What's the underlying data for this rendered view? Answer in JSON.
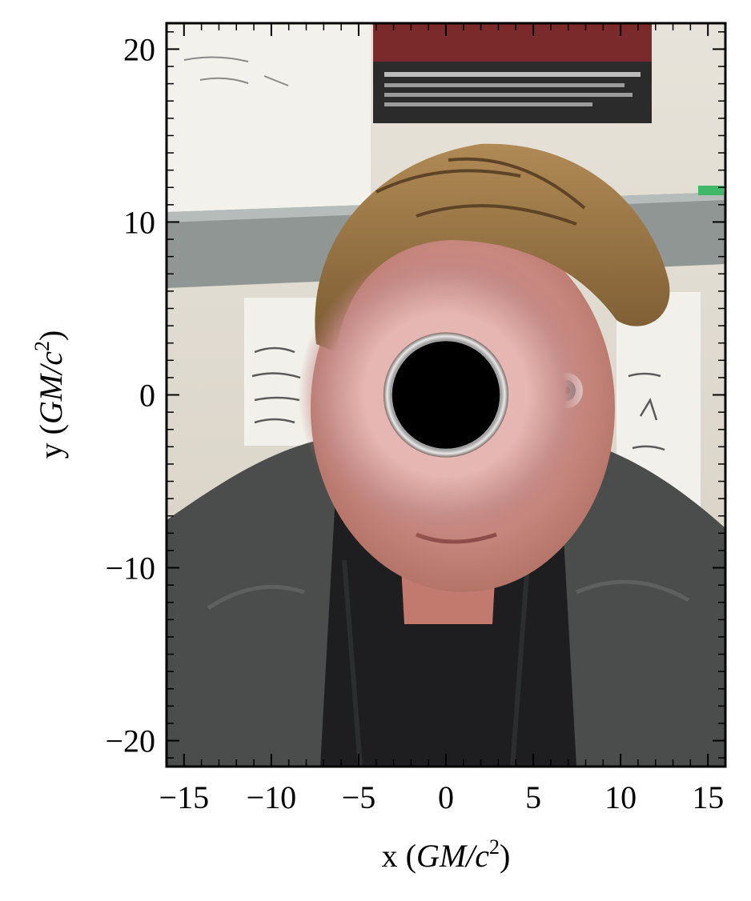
{
  "chart_data": {
    "type": "image",
    "xlabel": "x (GM/c²)",
    "ylabel": "y (GM/c²)",
    "xlabel_parts": {
      "prefix": "x (",
      "unit_main": "GM/c",
      "unit_sup": "2",
      "suffix": ")"
    },
    "ylabel_parts": {
      "prefix": "y (",
      "unit_main": "GM/c",
      "unit_sup": "2",
      "suffix": ")"
    },
    "xlim": [
      -16,
      16
    ],
    "ylim": [
      -21.5,
      21.5
    ],
    "xticks": [
      -15,
      -10,
      -5,
      0,
      5,
      10,
      15
    ],
    "yticks": [
      -20,
      -10,
      0,
      10,
      20
    ],
    "xtick_labels": [
      "−15",
      "−10",
      "−5",
      "0",
      "5",
      "10",
      "15"
    ],
    "ytick_labels": [
      "−20",
      "−10",
      "0",
      "10",
      "20"
    ],
    "minor_tick_step": 1,
    "grid": false,
    "shadow": {
      "center": [
        0,
        0
      ],
      "radius": 3.1,
      "color": "#000000"
    },
    "photon_ring": {
      "center": [
        0,
        0
      ],
      "inner_radius": 3.1,
      "outer_radius": 3.6
    },
    "lensed_ring": {
      "center": [
        0,
        0
      ],
      "radius": 8.5
    }
  }
}
